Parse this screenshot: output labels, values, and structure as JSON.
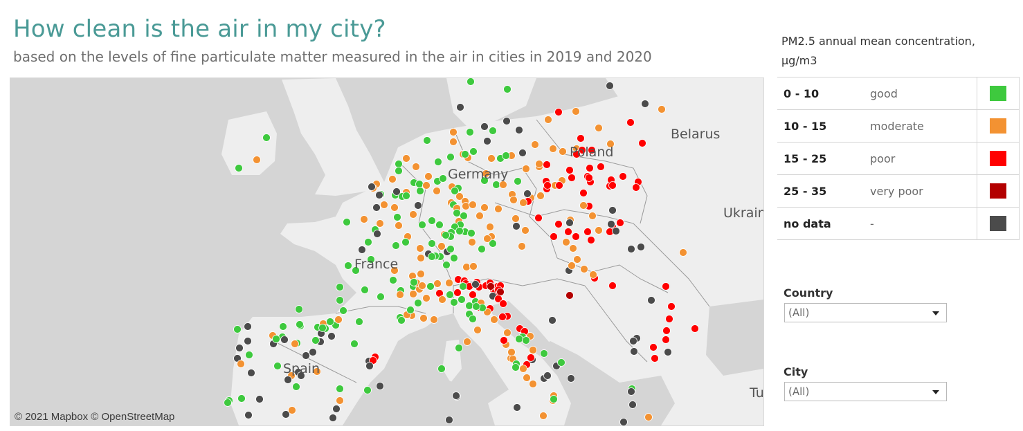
{
  "header": {
    "title": "How clean is the air in my city?",
    "subtitle": "based on the levels of fine particulate matter measured in the air in cities in 2019 and 2020"
  },
  "map": {
    "attribution": "© 2021 Mapbox  © OpenStreetMap",
    "labels": [
      "Belarus",
      "Poland",
      "Germany",
      "Ukraine",
      "France",
      "Spain",
      "Tu"
    ],
    "colors": {
      "good": "#3ec93e",
      "moderate": "#f39232",
      "poor": "#ff0000",
      "very_poor": "#b30000",
      "no_data": "#4b4b4b",
      "land": "#eeeeee",
      "sea": "#d5d5d5"
    }
  },
  "legend": {
    "title": "PM2.5 annual mean concentration, µg/m3",
    "items": [
      {
        "range": "0 - 10",
        "label": "good",
        "color": "#3ec93e"
      },
      {
        "range": "10 - 15",
        "label": "moderate",
        "color": "#f39232"
      },
      {
        "range": "15 - 25",
        "label": "poor",
        "color": "#ff0000"
      },
      {
        "range": "25 - 35",
        "label": "very poor",
        "color": "#b30000"
      },
      {
        "range": "no data",
        "label": "-",
        "color": "#4b4b4b"
      }
    ]
  },
  "filters": {
    "country": {
      "label": "Country",
      "value": "(All)"
    },
    "city": {
      "label": "City",
      "value": "(All)"
    }
  }
}
